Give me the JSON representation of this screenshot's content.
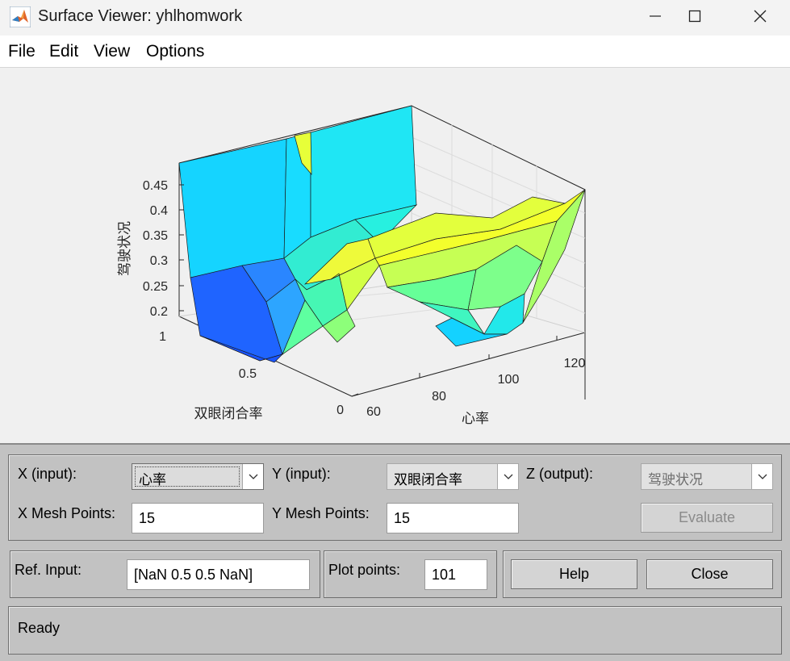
{
  "window": {
    "title": "Surface Viewer: yhlhomwork"
  },
  "menu": {
    "items": [
      "File",
      "Edit",
      "View",
      "Options"
    ]
  },
  "plot": {
    "z_label": "驾驶状况",
    "x_label": "心率",
    "y_label": "双眼闭合率",
    "z_ticks": [
      "0.45",
      "0.4",
      "0.35",
      "0.3",
      "0.25",
      "0.2"
    ],
    "y_ticks": [
      "1",
      "0.5",
      "0"
    ],
    "x_ticks": [
      "60",
      "80",
      "100",
      "120"
    ]
  },
  "controls": {
    "x_input_label": "X (input):",
    "x_input_value": "心率",
    "y_input_label": "Y (input):",
    "y_input_value": "双眼闭合率",
    "z_output_label": "Z (output):",
    "z_output_value": "驾驶状况",
    "x_mesh_label": "X Mesh Points:",
    "x_mesh_value": "15",
    "y_mesh_label": "Y Mesh Points:",
    "y_mesh_value": "15",
    "evaluate_label": "Evaluate",
    "ref_input_label": "Ref. Input:",
    "ref_input_value": "[NaN 0.5 0.5 NaN]",
    "plot_points_label": "Plot points:",
    "plot_points_value": "101",
    "help_label": "Help",
    "close_label": "Close"
  },
  "status": {
    "text": "Ready"
  },
  "colors": {
    "surface_low": "#1e6bff",
    "surface_mid": "#15d8ff",
    "surface_green": "#7dffa0",
    "surface_high": "#f2ff30"
  }
}
